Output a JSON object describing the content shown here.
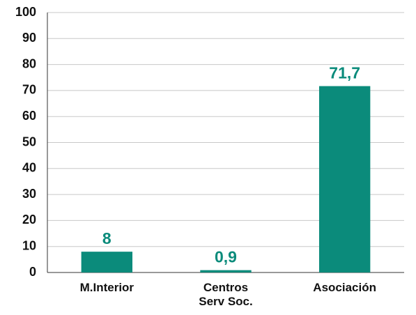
{
  "chart_data": {
    "type": "bar",
    "categories": [
      "M.Interior",
      "Centros Serv Soc.",
      "Asociación"
    ],
    "values": [
      8,
      0.9,
      71.7
    ],
    "value_labels": [
      "8",
      "0,9",
      "71,7"
    ],
    "color": "#0b8b7b",
    "ylim": [
      0,
      100
    ],
    "yticks": [
      0,
      10,
      20,
      30,
      40,
      50,
      60,
      70,
      80,
      90,
      100
    ],
    "grid": true
  }
}
